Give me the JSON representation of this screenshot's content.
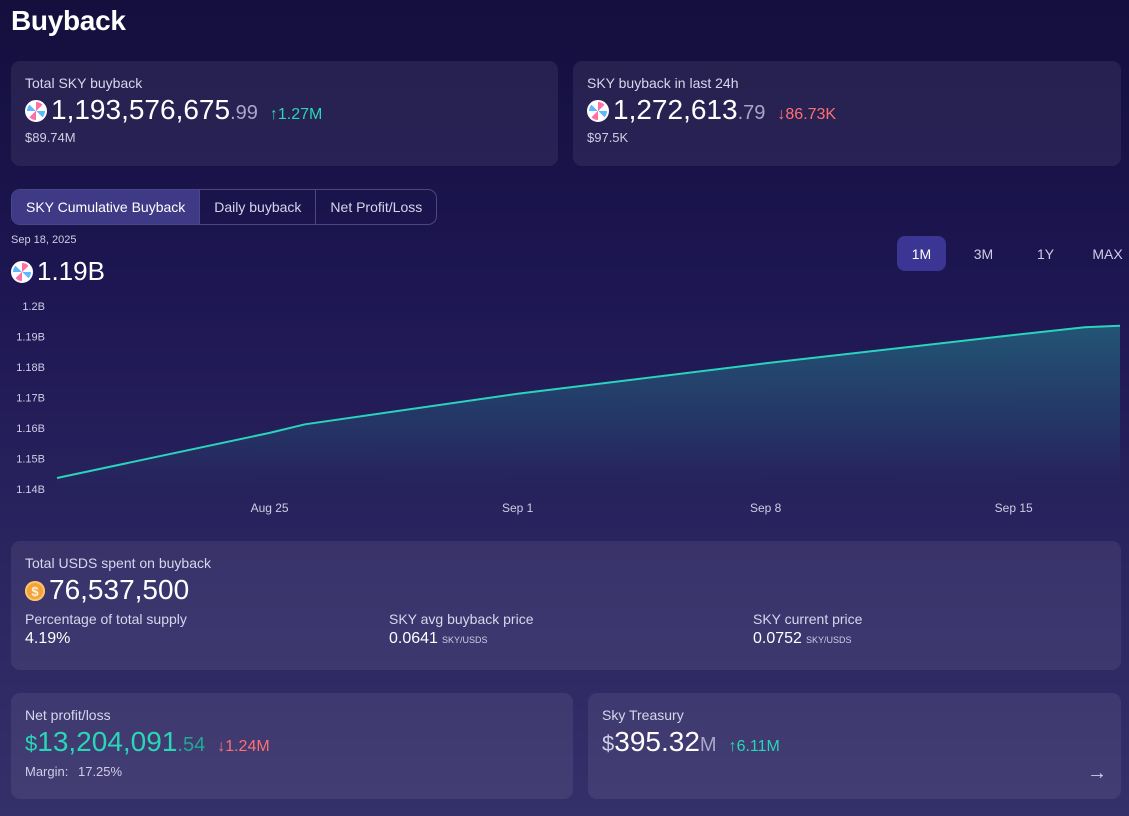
{
  "page": {
    "title": "Buyback"
  },
  "total_buyback": {
    "label": "Total SKY buyback",
    "value_int": "1,193,576,675",
    "value_dec": ".99",
    "change": "↑1.27M",
    "usd": "$89.74M"
  },
  "buyback_24h": {
    "label": "SKY buyback in last 24h",
    "value_int": "1,272,613",
    "value_dec": ".79",
    "change": "↓86.73K",
    "usd": "$97.5K"
  },
  "tabs": [
    "SKY Cumulative Buyback",
    "Daily buyback",
    "Net Profit/Loss"
  ],
  "chart_header": {
    "date": "Sep 18, 2025",
    "value": "1.19B"
  },
  "ranges": [
    "1M",
    "3M",
    "1Y",
    "MAX"
  ],
  "chart_data": {
    "type": "area",
    "y_ticks": [
      "1.2B",
      "1.19B",
      "1.18B",
      "1.17B",
      "1.16B",
      "1.15B",
      "1.14B"
    ],
    "x_ticks": [
      "Aug 25",
      "Sep 1",
      "Sep 8",
      "Sep 15"
    ],
    "ylim": [
      1.14,
      1.2
    ],
    "xlim": [
      "2025-08-19",
      "2025-09-18"
    ],
    "x": [
      "2025-08-19",
      "2025-08-25",
      "2025-08-26",
      "2025-09-01",
      "2025-09-08",
      "2025-09-15",
      "2025-09-17",
      "2025-09-18"
    ],
    "y": [
      1.1436,
      1.1584,
      1.1612,
      1.1712,
      1.1812,
      1.1905,
      1.193,
      1.1935
    ],
    "unit": "B",
    "line_color": "#2ad4bc"
  },
  "usds": {
    "label": "Total USDS spent on buyback",
    "icon": "$",
    "value": "76,537,500",
    "stats": [
      {
        "label": "Percentage of total supply",
        "value": "4.19%",
        "unit": ""
      },
      {
        "label": "SKY avg buyback price",
        "value": "0.0641",
        "unit": "SKY/USDS"
      },
      {
        "label": "SKY current price",
        "value": "0.0752",
        "unit": "SKY/USDS"
      }
    ]
  },
  "net_profit": {
    "label": "Net profit/loss",
    "currency": "$",
    "value_int": "13,204,091",
    "value_dec": ".54",
    "change": "↓1.24M",
    "margin_label": "Margin:",
    "margin_value": "17.25%"
  },
  "treasury": {
    "label": "Sky Treasury",
    "currency": "$",
    "value": "395.32",
    "suffix": "M",
    "change": "↑6.11M",
    "arrow": "→"
  },
  "colors": {
    "accent": "#29d6b6",
    "negative": "#ff6f72",
    "active_tab": "#3f3a86"
  }
}
